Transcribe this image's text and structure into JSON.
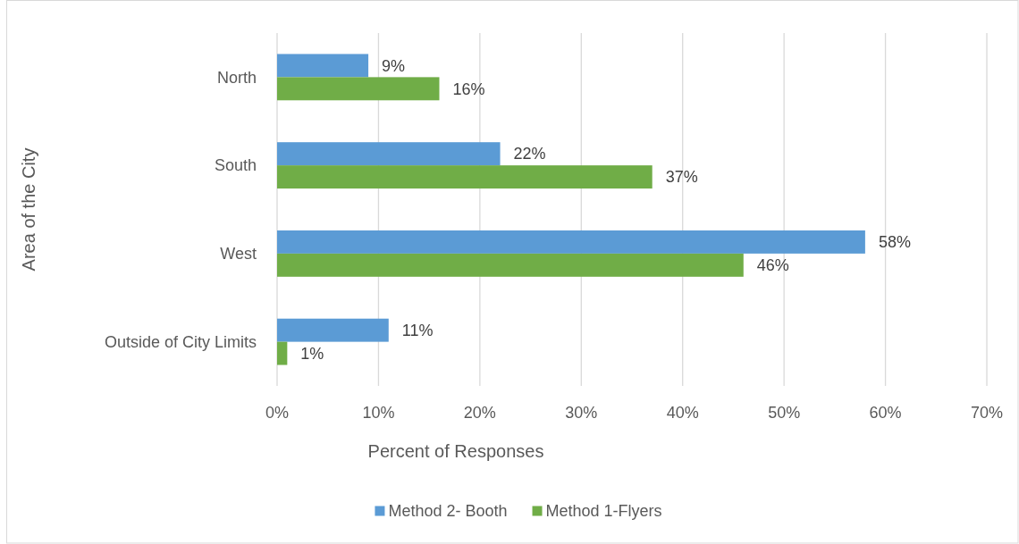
{
  "chart_data": {
    "type": "bar",
    "orientation": "horizontal",
    "categories": [
      "North",
      "South",
      "West",
      "Outside of City Limits"
    ],
    "series": [
      {
        "name": "Method 2- Booth",
        "color": "#5b9bd5",
        "values": [
          9,
          22,
          58,
          11
        ],
        "value_labels": [
          "9%",
          "22%",
          "58%",
          "11%"
        ]
      },
      {
        "name": "Method 1-Flyers",
        "color": "#70ad47",
        "values": [
          16,
          37,
          46,
          1
        ],
        "value_labels": [
          "16%",
          "37%",
          "46%",
          "1%"
        ]
      }
    ],
    "xlabel": "Percent of Responses",
    "ylabel": "Area of the City",
    "xlim": [
      0,
      70
    ],
    "xticks": [
      {
        "value": 0,
        "label": "0%"
      },
      {
        "value": 10,
        "label": "10%"
      },
      {
        "value": 20,
        "label": "20%"
      },
      {
        "value": 30,
        "label": "30%"
      },
      {
        "value": 40,
        "label": "40%"
      },
      {
        "value": 50,
        "label": "50%"
      },
      {
        "value": 60,
        "label": "60%"
      },
      {
        "value": 70,
        "label": "70%"
      }
    ],
    "grid": "x",
    "legend": "bottom"
  }
}
